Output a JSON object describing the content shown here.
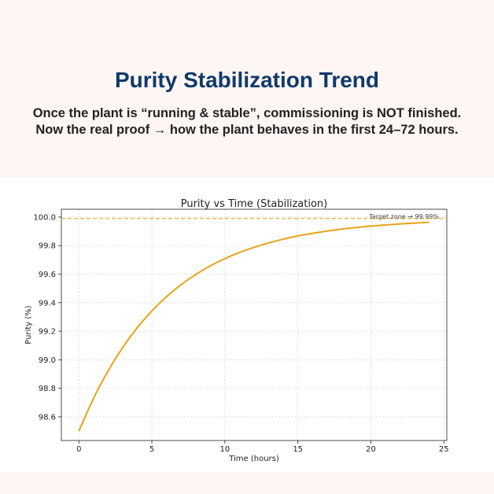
{
  "header": {
    "title": "Purity Stabilization Trend",
    "subtitle_line1": "Once the plant is “running & stable”, commissioning is NOT finished.",
    "subtitle_line2": "Now the real proof → how the plant behaves in the first 24–72 hours."
  },
  "chart_data": {
    "type": "line",
    "title": "Purity vs Time (Stabilization)",
    "xlabel": "Time (hours)",
    "ylabel": "Purity (%)",
    "xlim": [
      -1.2,
      25.2
    ],
    "ylim": [
      98.434,
      100.055
    ],
    "xticks": [
      0,
      5,
      10,
      15,
      20,
      25
    ],
    "yticks": [
      98.6,
      98.8,
      99.0,
      99.2,
      99.4,
      99.6,
      99.8,
      100.0
    ],
    "ytick_labels": [
      "98.6",
      "98.8",
      "99.0",
      "99.2",
      "99.4",
      "99.6",
      "99.8",
      "100.0"
    ],
    "xtick_labels": [
      "0",
      "5",
      "10",
      "15",
      "20",
      "25"
    ],
    "grid": true,
    "series": [
      {
        "name": "Purity",
        "color": "#e8a317",
        "x": [
          0,
          1,
          2,
          3,
          4,
          5,
          6,
          7,
          8,
          9,
          10,
          11,
          12,
          13,
          14,
          15,
          16,
          17,
          18,
          19,
          20,
          21,
          22,
          23,
          24
        ],
        "y": [
          98.5,
          98.729,
          98.922,
          99.086,
          99.225,
          99.342,
          99.442,
          99.526,
          99.597,
          99.658,
          99.709,
          99.752,
          99.788,
          99.819,
          99.845,
          99.868,
          99.886,
          99.902,
          99.916,
          99.927,
          99.937,
          99.945,
          99.952,
          99.958,
          99.963
        ]
      }
    ],
    "reference_line": {
      "y": 99.99,
      "color": "#e8a317",
      "style": "dashed",
      "label": "Target zone → 99.99%"
    }
  }
}
